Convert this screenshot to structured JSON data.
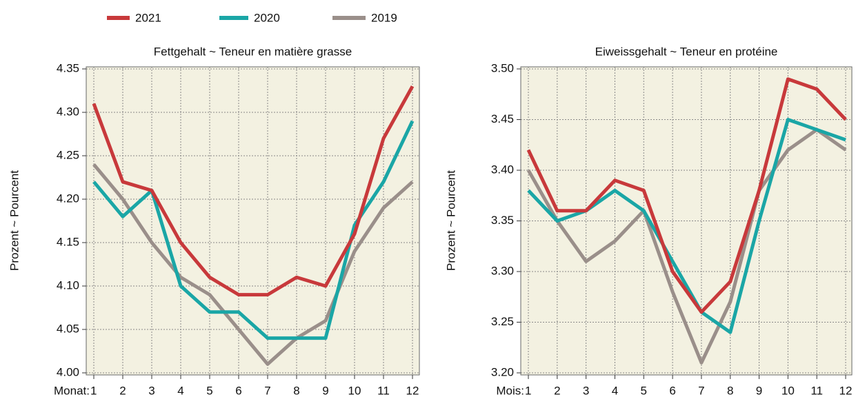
{
  "chart_data": [
    {
      "type": "line",
      "title": "Fettgehalt  ~  Teneur en matière grasse",
      "y_label": "Prozent  ~  Pourcent",
      "x_label": "Monat:",
      "categories": [
        "1",
        "2",
        "3",
        "4",
        "5",
        "6",
        "7",
        "8",
        "9",
        "10",
        "11",
        "12"
      ],
      "series": [
        {
          "name": "2021",
          "color": "#c8393b",
          "values": [
            4.31,
            4.22,
            4.21,
            4.15,
            4.11,
            4.09,
            4.09,
            4.11,
            4.1,
            4.16,
            4.27,
            4.33
          ]
        },
        {
          "name": "2020",
          "color": "#1aa6a6",
          "values": [
            4.22,
            4.18,
            4.21,
            4.1,
            4.07,
            4.07,
            4.04,
            4.04,
            4.04,
            4.17,
            4.22,
            4.29
          ]
        },
        {
          "name": "2019",
          "color": "#9a8f8a",
          "values": [
            4.24,
            4.2,
            4.15,
            4.11,
            4.09,
            4.05,
            4.01,
            4.04,
            4.06,
            4.14,
            4.19,
            4.22
          ]
        }
      ],
      "ylim": [
        4.0,
        4.35
      ],
      "yticks": [
        {
          "value": 4.0,
          "label": "4.00"
        },
        4.05,
        {
          "value": 4.1,
          "label": "4.10"
        },
        4.15,
        {
          "value": 4.2,
          "label": "4.20"
        },
        4.25,
        {
          "value": 4.3,
          "label": "4.30"
        },
        4.35
      ],
      "grid": true
    },
    {
      "type": "line",
      "title": "Eiweissgehalt  ~  Teneur en protéine",
      "y_label": "Prozent  ~  Pourcent",
      "x_label": "Mois:",
      "categories": [
        "1",
        "2",
        "3",
        "4",
        "5",
        "6",
        "7",
        "8",
        "9",
        "10",
        "11",
        "12"
      ],
      "series": [
        {
          "name": "2021",
          "color": "#c8393b",
          "values": [
            3.42,
            3.36,
            3.36,
            3.39,
            3.38,
            3.3,
            3.26,
            3.29,
            3.38,
            3.49,
            3.48,
            3.45
          ]
        },
        {
          "name": "2020",
          "color": "#1aa6a6",
          "values": [
            3.38,
            3.35,
            3.36,
            3.38,
            3.36,
            3.31,
            3.26,
            3.24,
            3.35,
            3.45,
            3.44,
            3.43
          ]
        },
        {
          "name": "2019",
          "color": "#9a8f8a",
          "values": [
            3.4,
            3.35,
            3.31,
            3.33,
            3.36,
            3.28,
            3.21,
            3.27,
            3.38,
            3.42,
            3.44,
            3.42
          ]
        }
      ],
      "ylim": [
        3.2,
        3.5
      ],
      "yticks": [
        {
          "value": 3.2,
          "label": "3.20"
        },
        3.25,
        {
          "value": 3.3,
          "label": "3.30"
        },
        3.35,
        {
          "value": 3.4,
          "label": "3.40"
        },
        3.45,
        {
          "value": 3.5,
          "label": "3.50"
        }
      ],
      "grid": true
    }
  ]
}
